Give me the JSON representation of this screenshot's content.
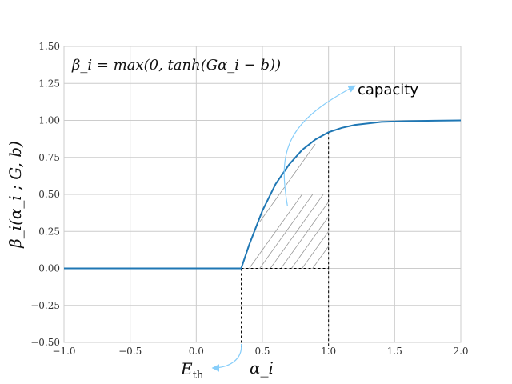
{
  "chart_data": {
    "type": "line",
    "formula": "β_i = max(0, tanh(Gα_i − b))",
    "ylabel": "β_i(α_i ; G, b)",
    "xlabel": "α_i",
    "xlim": [
      -1.0,
      2.0
    ],
    "ylim": [
      -0.5,
      1.5
    ],
    "x_ticks": [
      "−1.0",
      "−0.5",
      "0.0",
      "0.5",
      "1.0",
      "1.5",
      "2.0"
    ],
    "y_ticks": [
      "1.50",
      "1.25",
      "1.00",
      "0.75",
      "0.50",
      "0.25",
      "0.00",
      "−0.25",
      "−0.50"
    ],
    "grid": true,
    "series": [
      {
        "color": "#1f77b4",
        "x": [
          -1.0,
          -0.5,
          0.0,
          0.34,
          0.4,
          0.5,
          0.6,
          0.7,
          0.8,
          0.9,
          1.0,
          1.1,
          1.2,
          1.4,
          1.6,
          1.8,
          2.0
        ],
        "y": [
          0.0,
          0.0,
          0.0,
          0.0,
          0.16,
          0.39,
          0.57,
          0.7,
          0.8,
          0.87,
          0.92,
          0.95,
          0.97,
          0.99,
          0.995,
          0.998,
          1.0
        ]
      }
    ],
    "threshold_x": 0.34,
    "cap_x": 1.0,
    "cap_y": 0.92,
    "annotations": {
      "capacity": "capacity",
      "e_th_main": "E",
      "e_th_sub": "th"
    },
    "annotation_color": "#87cefa"
  }
}
